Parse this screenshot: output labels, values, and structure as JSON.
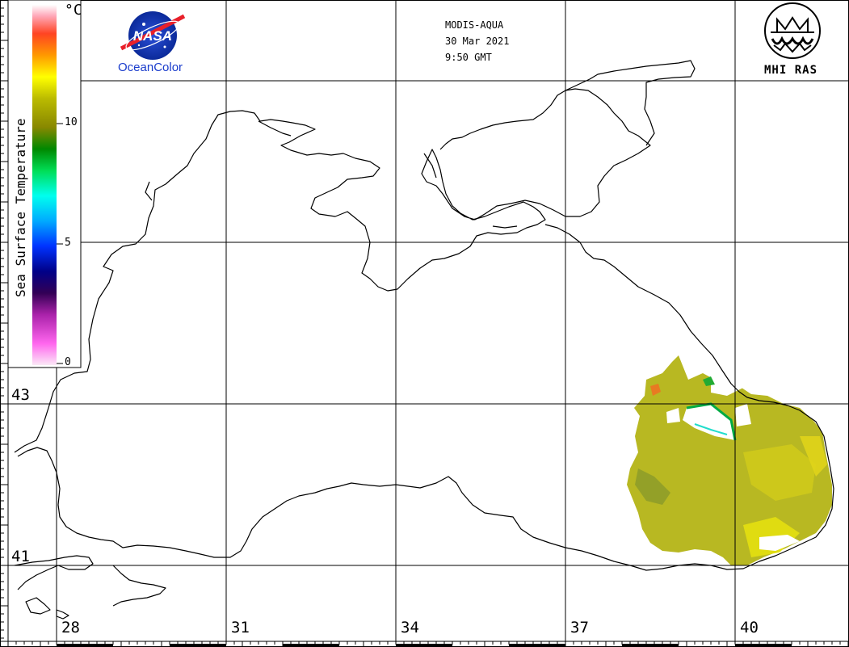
{
  "header": {
    "sensor": "MODIS-AQUA",
    "date": "30 Mar 2021",
    "time": "9:50 GMT"
  },
  "logos": {
    "nasa": "NASA",
    "oceancolor": "OceanColor",
    "mhi": "MHI RAS"
  },
  "colorbar": {
    "title": "Sea Surface Temperature",
    "unit": "°C",
    "ticks": [
      "10",
      "5",
      "0"
    ],
    "range": [
      0,
      15
    ],
    "colors": [
      "#ffe8f8",
      "#ff66ee",
      "#880088",
      "#220044",
      "#0000ff",
      "#00aaff",
      "#00ffee",
      "#00cc33",
      "#669900",
      "#999900",
      "#cccc00",
      "#ffff00",
      "#ffaa00",
      "#ff4400",
      "#ff99aa",
      "#ffffff"
    ]
  },
  "grid": {
    "latitudes": [
      "43",
      "41"
    ],
    "longitudes": [
      "28",
      "31",
      "34",
      "37",
      "40"
    ]
  },
  "sst": {
    "dominant_color": "#b8b820",
    "region": "eastern Black Sea"
  }
}
